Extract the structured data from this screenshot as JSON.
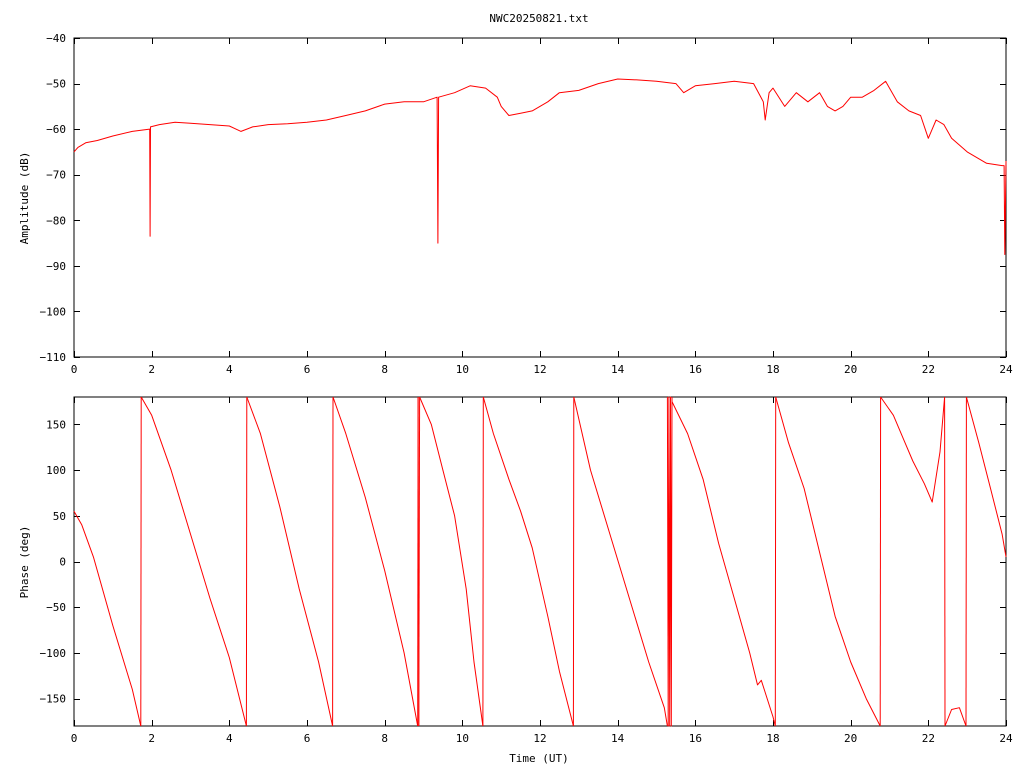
{
  "title": "NWC20250821.txt",
  "colors": {
    "series": "#ff0000",
    "frame": "#000000",
    "background": "#ffffff"
  },
  "chart_data": [
    {
      "type": "line",
      "name": "amplitude",
      "ylabel": "Amplitude (dB)",
      "xlabel": "",
      "xlim": [
        0,
        24
      ],
      "ylim": [
        -110,
        -40
      ],
      "xticks": [
        0,
        2,
        4,
        6,
        8,
        10,
        12,
        14,
        16,
        18,
        20,
        22,
        24
      ],
      "yticks": [
        -40,
        -50,
        -60,
        -70,
        -80,
        -90,
        -100,
        -110
      ],
      "ytick_labels": [
        "−40",
        "−50",
        "−60",
        "−70",
        "−80",
        "−90",
        "−100",
        "−110"
      ],
      "grid": false,
      "series": [
        {
          "color": "#ff0000",
          "x": [
            0,
            0.1,
            0.3,
            0.6,
            1.0,
            1.5,
            1.95,
            1.96,
            1.97,
            2.2,
            2.6,
            3.0,
            3.5,
            4.0,
            4.3,
            4.6,
            5.0,
            5.5,
            6.0,
            6.5,
            7.0,
            7.5,
            8.0,
            8.5,
            9.0,
            9.35,
            9.37,
            9.39,
            9.8,
            10.2,
            10.6,
            10.9,
            11.0,
            11.2,
            11.5,
            11.8,
            12.2,
            12.5,
            13.0,
            13.5,
            14.0,
            14.5,
            15.0,
            15.5,
            15.7,
            16.0,
            16.5,
            17.0,
            17.5,
            17.75,
            17.8,
            17.9,
            18.0,
            18.3,
            18.6,
            18.9,
            19.2,
            19.4,
            19.6,
            19.8,
            20.0,
            20.3,
            20.6,
            20.9,
            21.2,
            21.5,
            21.8,
            22.0,
            22.2,
            22.4,
            22.6,
            23.0,
            23.5,
            23.9,
            23.95,
            23.97,
            24.0
          ],
          "y": [
            -65,
            -64,
            -63,
            -62.5,
            -61.5,
            -60.5,
            -60,
            -83.5,
            -59.5,
            -59,
            -58.5,
            -58.7,
            -59,
            -59.3,
            -60.5,
            -59.5,
            -59,
            -58.8,
            -58.5,
            -58,
            -57,
            -56,
            -54.5,
            -54,
            -54,
            -53,
            -85,
            -53,
            -52,
            -50.5,
            -51,
            -53,
            -55,
            -57,
            -56.5,
            -56,
            -54,
            -52,
            -51.5,
            -50,
            -49,
            -49.2,
            -49.5,
            -50,
            -52,
            -50.5,
            -50,
            -49.5,
            -50,
            -54,
            -58,
            -52,
            -51,
            -55,
            -52,
            -54,
            -52,
            -55,
            -56,
            -55,
            -53,
            -53,
            -51.5,
            -49.5,
            -54,
            -56,
            -57,
            -62,
            -58,
            -59,
            -62,
            -65,
            -67.5,
            -68,
            -68,
            -87.5,
            -67
          ]
        }
      ]
    },
    {
      "type": "line",
      "name": "phase",
      "ylabel": "Phase (deg)",
      "xlabel": "Time (UT)",
      "xlim": [
        0,
        24
      ],
      "ylim": [
        -180,
        180
      ],
      "xticks": [
        0,
        2,
        4,
        6,
        8,
        10,
        12,
        14,
        16,
        18,
        20,
        22,
        24
      ],
      "yticks": [
        150,
        100,
        50,
        0,
        -50,
        -100,
        -150
      ],
      "ytick_labels": [
        "150",
        "100",
        "50",
        "0",
        "−50",
        "−100",
        "−150"
      ],
      "grid": false,
      "series": [
        {
          "color": "#ff0000",
          "segments": [
            {
              "x": [
                0,
                0.2,
                0.5,
                1.0,
                1.5,
                1.72
              ],
              "y": [
                55,
                40,
                5,
                -70,
                -140,
                -180
              ]
            },
            {
              "x": [
                1.72,
                1.73
              ],
              "y": [
                -180,
                180
              ]
            },
            {
              "x": [
                1.73,
                2.0,
                2.5,
                3.0,
                3.5,
                4.0,
                4.44
              ],
              "y": [
                180,
                160,
                100,
                30,
                -40,
                -105,
                -180
              ]
            },
            {
              "x": [
                4.44,
                4.45
              ],
              "y": [
                -180,
                180
              ]
            },
            {
              "x": [
                4.45,
                4.8,
                5.3,
                5.8,
                6.3,
                6.66
              ],
              "y": [
                180,
                140,
                60,
                -30,
                -110,
                -180
              ]
            },
            {
              "x": [
                6.66,
                6.67
              ],
              "y": [
                -180,
                180
              ]
            },
            {
              "x": [
                6.67,
                7.0,
                7.5,
                8.0,
                8.5,
                8.85
              ],
              "y": [
                180,
                140,
                70,
                -10,
                -100,
                -180
              ]
            },
            {
              "x": [
                8.85,
                8.86
              ],
              "y": [
                -180,
                180
              ]
            },
            {
              "x": [
                8.86,
                8.88
              ],
              "y": [
                180,
                -180
              ]
            },
            {
              "x": [
                8.88,
                8.9
              ],
              "y": [
                -180,
                180
              ]
            },
            {
              "x": [
                8.9,
                9.2,
                9.5,
                9.8,
                10.1,
                10.3,
                10.53
              ],
              "y": [
                180,
                150,
                100,
                50,
                -30,
                -110,
                -180
              ]
            },
            {
              "x": [
                10.53,
                10.54
              ],
              "y": [
                -180,
                180
              ]
            },
            {
              "x": [
                10.54,
                10.8,
                11.2,
                11.5,
                11.8,
                12.2,
                12.5,
                12.86
              ],
              "y": [
                180,
                140,
                90,
                55,
                15,
                -60,
                -120,
                -180
              ]
            },
            {
              "x": [
                12.86,
                12.87
              ],
              "y": [
                -180,
                180
              ]
            },
            {
              "x": [
                12.87,
                13.3,
                13.8,
                14.3,
                14.8,
                15.2,
                15.28
              ],
              "y": [
                180,
                100,
                30,
                -40,
                -110,
                -160,
                -180
              ]
            },
            {
              "x": [
                15.28,
                15.3,
                15.32,
                15.34,
                15.36,
                15.38,
                15.4
              ],
              "y": [
                180,
                -180,
                180,
                -180,
                180,
                -180,
                180
              ]
            },
            {
              "x": [
                15.4,
                15.8,
                16.2,
                16.6,
                17.0,
                17.4,
                17.6,
                17.7,
                18.0,
                18.06
              ],
              "y": [
                175,
                140,
                90,
                20,
                -40,
                -100,
                -135,
                -130,
                -170,
                -180
              ]
            },
            {
              "x": [
                18.06,
                18.07
              ],
              "y": [
                -180,
                180
              ]
            },
            {
              "x": [
                18.07,
                18.4,
                18.8,
                19.2,
                19.6,
                20.0,
                20.4,
                20.76
              ],
              "y": [
                180,
                130,
                80,
                10,
                -60,
                -110,
                -150,
                -180
              ]
            },
            {
              "x": [
                20.76,
                20.77
              ],
              "y": [
                -180,
                180
              ]
            },
            {
              "x": [
                20.77,
                21.1,
                21.4,
                21.6,
                21.9,
                22.1,
                22.3,
                22.42
              ],
              "y": [
                180,
                160,
                130,
                110,
                85,
                65,
                120,
                180
              ]
            },
            {
              "x": [
                22.42,
                22.43
              ],
              "y": [
                180,
                -180
              ]
            },
            {
              "x": [
                22.43,
                22.6,
                22.8,
                22.97
              ],
              "y": [
                -180,
                -162,
                -160,
                -180
              ]
            },
            {
              "x": [
                22.97,
                22.98
              ],
              "y": [
                -180,
                180
              ]
            },
            {
              "x": [
                22.98,
                23.3,
                23.6,
                23.9,
                24.0
              ],
              "y": [
                180,
                130,
                80,
                30,
                5
              ]
            }
          ]
        }
      ]
    }
  ]
}
